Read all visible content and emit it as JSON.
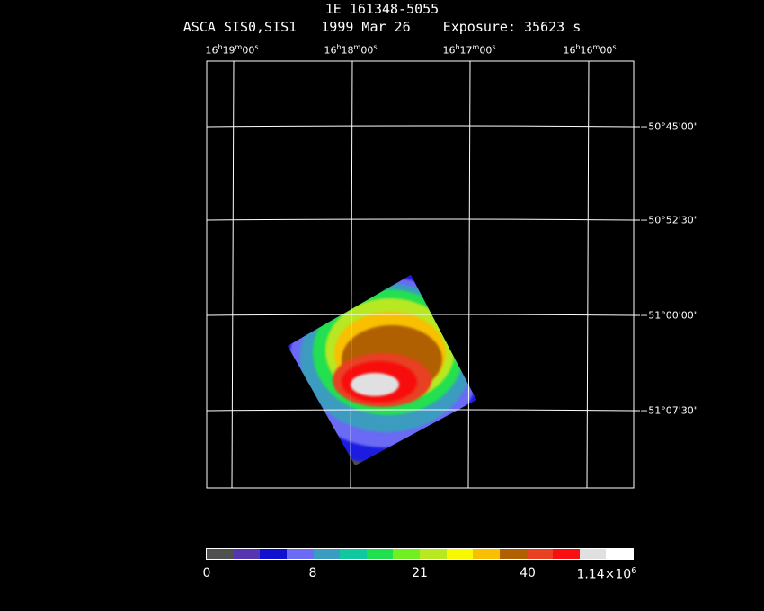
{
  "header": {
    "object_name": "1E 161348-5055",
    "observation_line": "ASCA SIS0,SIS1   1999 Mar 26    Exposure: 35623 s"
  },
  "ra_axis": {
    "labels": [
      {
        "h": "16",
        "m": "19",
        "s": "00"
      },
      {
        "h": "16",
        "m": "18",
        "s": "00"
      },
      {
        "h": "16",
        "m": "17",
        "s": "00"
      },
      {
        "h": "16",
        "m": "16",
        "s": "00"
      }
    ],
    "units": {
      "h": "h",
      "m": "m",
      "s": "s"
    }
  },
  "dec_axis": {
    "labels": [
      "−50°45'00\"",
      "−50°52'30\"",
      "−51°00'00\"",
      "−51°07'30\""
    ]
  },
  "colorbar": {
    "colors": [
      "#505050",
      "#5535b0",
      "#1010d0",
      "#6b6bf5",
      "#3a9cc0",
      "#10c8a0",
      "#20e050",
      "#70f020",
      "#b8e820",
      "#f8f800",
      "#f8c000",
      "#b06000",
      "#e84020",
      "#f81010",
      "#e0e0e0",
      "#ffffff"
    ],
    "tick_labels": [
      "0",
      "8",
      "21",
      "40",
      "1.14×10"
    ],
    "max_exponent": "6"
  },
  "image_levels": {
    "outer": "#505050",
    "l1": "#1e1ee0",
    "l2": "#6b6bf5",
    "l3": "#3a9cc0",
    "l4": "#20e050",
    "l5": "#b8e820",
    "l6": "#f8c000",
    "l7": "#b06000",
    "l8": "#e84020",
    "l9": "#f81010",
    "core": "#e0e0e0"
  }
}
